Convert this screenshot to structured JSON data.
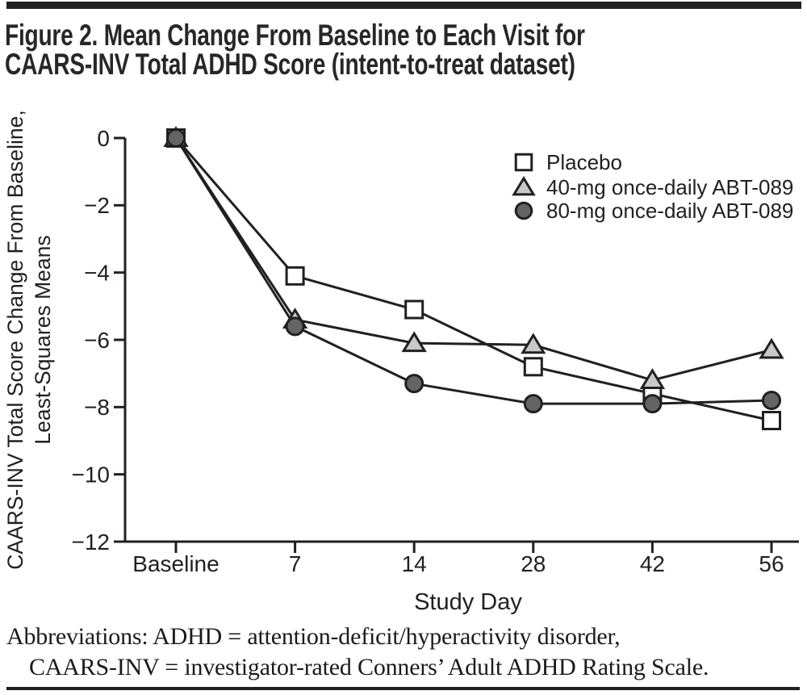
{
  "figure": {
    "title_line1": "Figure 2. Mean Change From Baseline to Each Visit for",
    "title_line2": "CAARS-INV Total ADHD Score (intent-to-treat dataset)",
    "footer_line1": "Abbreviations: ADHD = attention-deficit/hyperactivity disorder,",
    "footer_line2": "CAARS-INV = investigator-rated Conners’ Adult ADHD Rating Scale."
  },
  "chart_data": {
    "type": "line",
    "title": "",
    "xlabel": "Study Day",
    "ylabel_line1": "CAARS-INV Total Score Change From Baseline,",
    "ylabel_line2": "Least-Squares Means",
    "categories": [
      "Baseline",
      "7",
      "14",
      "28",
      "42",
      "56"
    ],
    "y_ticks": [
      0,
      -2,
      -4,
      -6,
      -8,
      -10,
      -12
    ],
    "y_tick_labels": [
      "0",
      "−2",
      "−4",
      "−6",
      "−8",
      "−10",
      "−12"
    ],
    "ylim": [
      -12,
      0
    ],
    "grid": false,
    "legend_position": "upper-right-inside",
    "ink_color": "#231f20",
    "series": [
      {
        "name": "Placebo",
        "marker": "square",
        "marker_fill": "#ffffff",
        "values": [
          0,
          -4.1,
          -5.1,
          -6.8,
          -7.6,
          -8.4
        ]
      },
      {
        "name": "40-mg once-daily ABT-089",
        "marker": "triangle",
        "marker_fill": "#c8c9ca",
        "values": [
          0,
          -5.4,
          -6.1,
          -6.15,
          -7.2,
          -6.3
        ]
      },
      {
        "name": "80-mg once-daily ABT-089",
        "marker": "circle",
        "marker_fill": "#636466",
        "values": [
          0,
          -5.6,
          -7.3,
          -7.9,
          -7.9,
          -7.8
        ]
      }
    ]
  }
}
